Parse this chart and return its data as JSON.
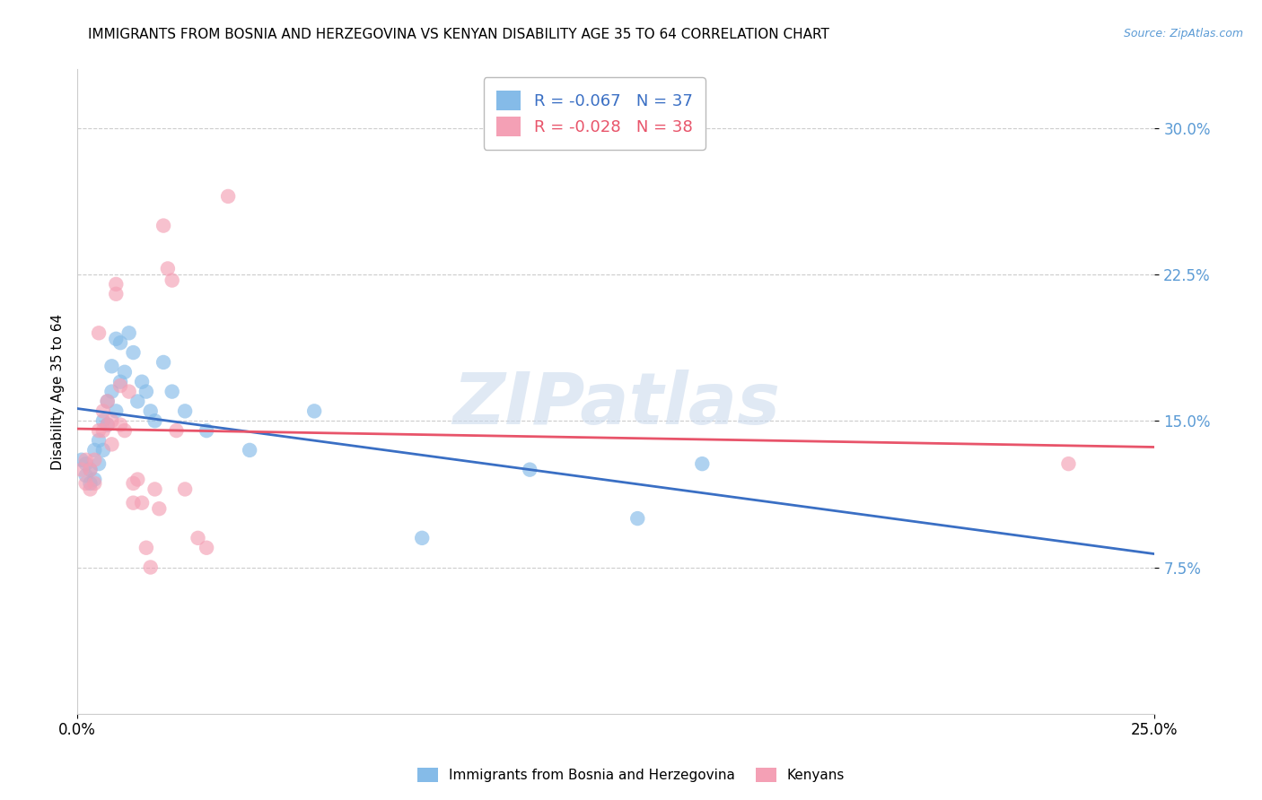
{
  "title": "IMMIGRANTS FROM BOSNIA AND HERZEGOVINA VS KENYAN DISABILITY AGE 35 TO 64 CORRELATION CHART",
  "source": "Source: ZipAtlas.com",
  "ylabel": "Disability Age 35 to 64",
  "xlim": [
    0.0,
    0.25
  ],
  "ylim": [
    0.0,
    0.33
  ],
  "yticks": [
    0.075,
    0.15,
    0.225,
    0.3
  ],
  "ytick_labels": [
    "7.5%",
    "15.0%",
    "22.5%",
    "30.0%"
  ],
  "color_blue": "#85BBE8",
  "color_pink": "#F4A0B5",
  "line_blue": "#3A6FC4",
  "line_pink": "#E8546A",
  "legend_r1": "R = -0.067",
  "legend_n1": "N = 37",
  "legend_r2": "R = -0.028",
  "legend_n2": "N = 38",
  "legend_label1": "Immigrants from Bosnia and Herzegovina",
  "legend_label2": "Kenyans",
  "watermark": "ZIPatlas",
  "title_fontsize": 11,
  "axis_label_fontsize": 11,
  "tick_fontsize": 12,
  "blue_x": [
    0.001,
    0.002,
    0.002,
    0.003,
    0.003,
    0.004,
    0.004,
    0.005,
    0.005,
    0.006,
    0.006,
    0.007,
    0.007,
    0.008,
    0.008,
    0.009,
    0.009,
    0.01,
    0.01,
    0.011,
    0.012,
    0.013,
    0.014,
    0.015,
    0.016,
    0.017,
    0.018,
    0.02,
    0.022,
    0.025,
    0.03,
    0.04,
    0.055,
    0.08,
    0.105,
    0.13,
    0.145
  ],
  "blue_y": [
    0.13,
    0.128,
    0.122,
    0.125,
    0.118,
    0.135,
    0.12,
    0.14,
    0.128,
    0.15,
    0.135,
    0.16,
    0.148,
    0.165,
    0.178,
    0.155,
    0.192,
    0.17,
    0.19,
    0.175,
    0.195,
    0.185,
    0.16,
    0.17,
    0.165,
    0.155,
    0.15,
    0.18,
    0.165,
    0.155,
    0.145,
    0.135,
    0.155,
    0.09,
    0.125,
    0.1,
    0.128
  ],
  "pink_x": [
    0.001,
    0.002,
    0.002,
    0.003,
    0.003,
    0.004,
    0.004,
    0.005,
    0.005,
    0.006,
    0.006,
    0.007,
    0.007,
    0.008,
    0.008,
    0.009,
    0.009,
    0.01,
    0.01,
    0.011,
    0.012,
    0.013,
    0.013,
    0.014,
    0.015,
    0.016,
    0.017,
    0.018,
    0.019,
    0.02,
    0.021,
    0.022,
    0.023,
    0.025,
    0.028,
    0.03,
    0.035,
    0.23
  ],
  "pink_y": [
    0.125,
    0.13,
    0.118,
    0.125,
    0.115,
    0.13,
    0.118,
    0.195,
    0.145,
    0.155,
    0.145,
    0.16,
    0.148,
    0.15,
    0.138,
    0.22,
    0.215,
    0.168,
    0.148,
    0.145,
    0.165,
    0.118,
    0.108,
    0.12,
    0.108,
    0.085,
    0.075,
    0.115,
    0.105,
    0.25,
    0.228,
    0.222,
    0.145,
    0.115,
    0.09,
    0.085,
    0.265,
    0.128
  ]
}
